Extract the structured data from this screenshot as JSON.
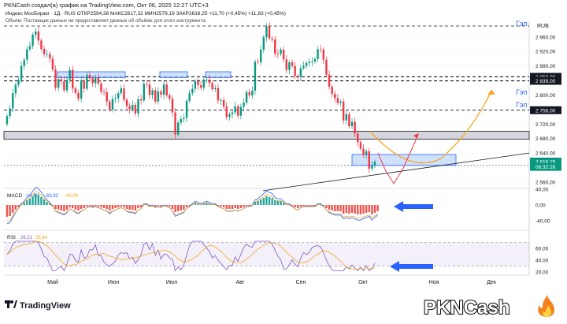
{
  "header": {
    "attribution": "PKNCash создал(а) график на TradingView.com, Окт 06, 2025 12:27 UTC+3",
    "symbol_line": "Индекс МосБиржи · 1Д · RUS  ОТКР2594,38  МАКС2617,32  МИН2579,19  ЗАКР2616,25  +11,70 (+0,45%)  +11,83 (+0,45%)",
    "volume_note": "Объём: Поставщик данных не предоставляет данные об объёме для этого инструмента."
  },
  "chart_data": {
    "type": "candlestick",
    "currency": "RUB",
    "price_ticks": [
      2560,
      2600,
      2640,
      2680,
      2720,
      2760,
      2800,
      2840,
      2880,
      2920,
      2960
    ],
    "price_tick_labels": [
      "2 560,00",
      "2 600,00",
      "2 640,00",
      "2 680,00",
      "2 720,00",
      "2 760,00",
      "2 800,00",
      "2 840,00",
      "2 880,00",
      "2 920,00",
      "2 960,00"
    ],
    "x_labels": [
      "Май",
      "Июн",
      "Июл",
      "Авг",
      "Сен",
      "Окт",
      "Ноя",
      "Дек"
    ],
    "price_badges": [
      {
        "label": "2 850,00",
        "value": 2850,
        "color": "#131722"
      },
      {
        "label": "2 839,00",
        "value": 2839,
        "color": "#131722"
      },
      {
        "label": "2 758,00",
        "value": 2758,
        "color": "#131722"
      },
      {
        "label": "2 616,43",
        "value": 2616.43,
        "color": "#131722"
      },
      {
        "label": "2 616,25",
        "value": 2616.25,
        "color": "#089981"
      },
      {
        "label": "06:32:28",
        "value": 2602,
        "color": "#089981"
      }
    ],
    "horizontal_levels": [
      2990,
      2850,
      2839,
      2758,
      2606
    ],
    "zone": {
      "top": 2700,
      "bottom": 2678
    },
    "gap_labels": [
      {
        "text": "Гэп",
        "price": 2997
      },
      {
        "text": "Гэп",
        "price": 2808
      },
      {
        "text": "Гэп",
        "price": 2773
      }
    ],
    "candles_o": [
      2720,
      2742,
      2763,
      2805,
      2828,
      2842,
      2880,
      2897,
      2926,
      2935,
      2966,
      2975,
      2950,
      2927,
      2912,
      2913,
      2900,
      2870,
      2820,
      2844,
      2838,
      2813,
      2842,
      2869,
      2818,
      2806,
      2790,
      2840,
      2817,
      2855,
      2846,
      2832,
      2847,
      2832,
      2809,
      2808,
      2782,
      2760,
      2789,
      2791,
      2805,
      2818,
      2787,
      2769,
      2761,
      2773,
      2749,
      2788,
      2785,
      2831,
      2829,
      2800,
      2813,
      2782,
      2810,
      2801,
      2829,
      2799,
      2790,
      2752,
      2691,
      2724,
      2734,
      2737,
      2784,
      2805,
      2817,
      2838,
      2827,
      2820,
      2842,
      2842,
      2833,
      2816,
      2819,
      2785,
      2786,
      2768,
      2739,
      2747,
      2752,
      2769,
      2743,
      2767,
      2779,
      2808,
      2799,
      2812,
      2892,
      2890,
      2925,
      2959,
      2989,
      2956,
      2953,
      2914,
      2913,
      2925,
      2898,
      2869,
      2890,
      2880,
      2852,
      2850,
      2874,
      2880,
      2888,
      2891,
      2892,
      2899,
      2926,
      2925,
      2897,
      2856,
      2823,
      2803,
      2791,
      2778,
      2782,
      2730,
      2747,
      2714,
      2726,
      2694,
      2670,
      2652,
      2635,
      2645,
      2597,
      2606
    ],
    "candles_c": [
      2742,
      2763,
      2805,
      2828,
      2842,
      2880,
      2897,
      2926,
      2935,
      2966,
      2975,
      2950,
      2927,
      2912,
      2913,
      2900,
      2870,
      2820,
      2844,
      2838,
      2813,
      2842,
      2869,
      2818,
      2806,
      2790,
      2840,
      2817,
      2855,
      2846,
      2832,
      2847,
      2832,
      2809,
      2808,
      2782,
      2760,
      2789,
      2791,
      2805,
      2818,
      2787,
      2769,
      2761,
      2773,
      2749,
      2788,
      2785,
      2831,
      2829,
      2800,
      2813,
      2782,
      2810,
      2801,
      2829,
      2799,
      2790,
      2752,
      2691,
      2724,
      2734,
      2737,
      2784,
      2805,
      2817,
      2838,
      2827,
      2820,
      2842,
      2842,
      2833,
      2816,
      2819,
      2785,
      2786,
      2768,
      2739,
      2747,
      2752,
      2769,
      2743,
      2767,
      2779,
      2808,
      2799,
      2812,
      2892,
      2890,
      2925,
      2959,
      2989,
      2956,
      2953,
      2914,
      2913,
      2925,
      2898,
      2869,
      2890,
      2880,
      2852,
      2850,
      2874,
      2880,
      2888,
      2891,
      2892,
      2899,
      2926,
      2925,
      2897,
      2856,
      2823,
      2803,
      2791,
      2778,
      2782,
      2730,
      2747,
      2714,
      2726,
      2694,
      2670,
      2652,
      2635,
      2645,
      2597,
      2606,
      2616
    ],
    "macd_ticks": [
      40,
      0,
      -40
    ],
    "macd_tick_labels": [
      "40,00",
      "0,00",
      "-40,00"
    ],
    "macd_legend": {
      "name": "MACD",
      "v1": "-14,60",
      "v2": "-63,92",
      "v3": "-49,09"
    },
    "macd_hist": [
      -30,
      -28,
      -20,
      -12,
      -5,
      2,
      6,
      12,
      16,
      22,
      28,
      26,
      20,
      14,
      8,
      4,
      -2,
      -10,
      -12,
      -14,
      -16,
      -12,
      -6,
      -8,
      -12,
      -14,
      -10,
      -8,
      -4,
      -2,
      -4,
      -2,
      -4,
      -6,
      -8,
      -10,
      -14,
      -10,
      -8,
      -6,
      -4,
      -6,
      -10,
      -12,
      -12,
      -14,
      -8,
      -6,
      2,
      2,
      -2,
      0,
      -4,
      -2,
      -4,
      0,
      -2,
      -4,
      -10,
      -18,
      -16,
      -14,
      -12,
      -6,
      -2,
      2,
      6,
      4,
      2,
      4,
      6,
      4,
      2,
      2,
      -2,
      -4,
      -6,
      -10,
      -10,
      -10,
      -8,
      -10,
      -8,
      -6,
      -2,
      -2,
      0,
      8,
      10,
      14,
      18,
      22,
      20,
      18,
      12,
      10,
      10,
      6,
      2,
      2,
      -2,
      -6,
      -8,
      -4,
      -2,
      -2,
      -2,
      -2,
      -2,
      2,
      2,
      -2,
      -8,
      -12,
      -14,
      -16,
      -16,
      -16,
      -22,
      -20,
      -22,
      -20,
      -22,
      -24,
      -24,
      -22,
      -20,
      -18,
      -24,
      -20,
      -16
    ],
    "rsi_ticks": [
      60,
      40,
      20
    ],
    "rsi_tick_labels": [
      "60,00",
      "40,00",
      "20,00"
    ],
    "rsi_legend": {
      "name": "RSI",
      "v1": "26,21",
      "v2": "35,84"
    },
    "rsi_band": [
      30,
      70
    ]
  }
}
